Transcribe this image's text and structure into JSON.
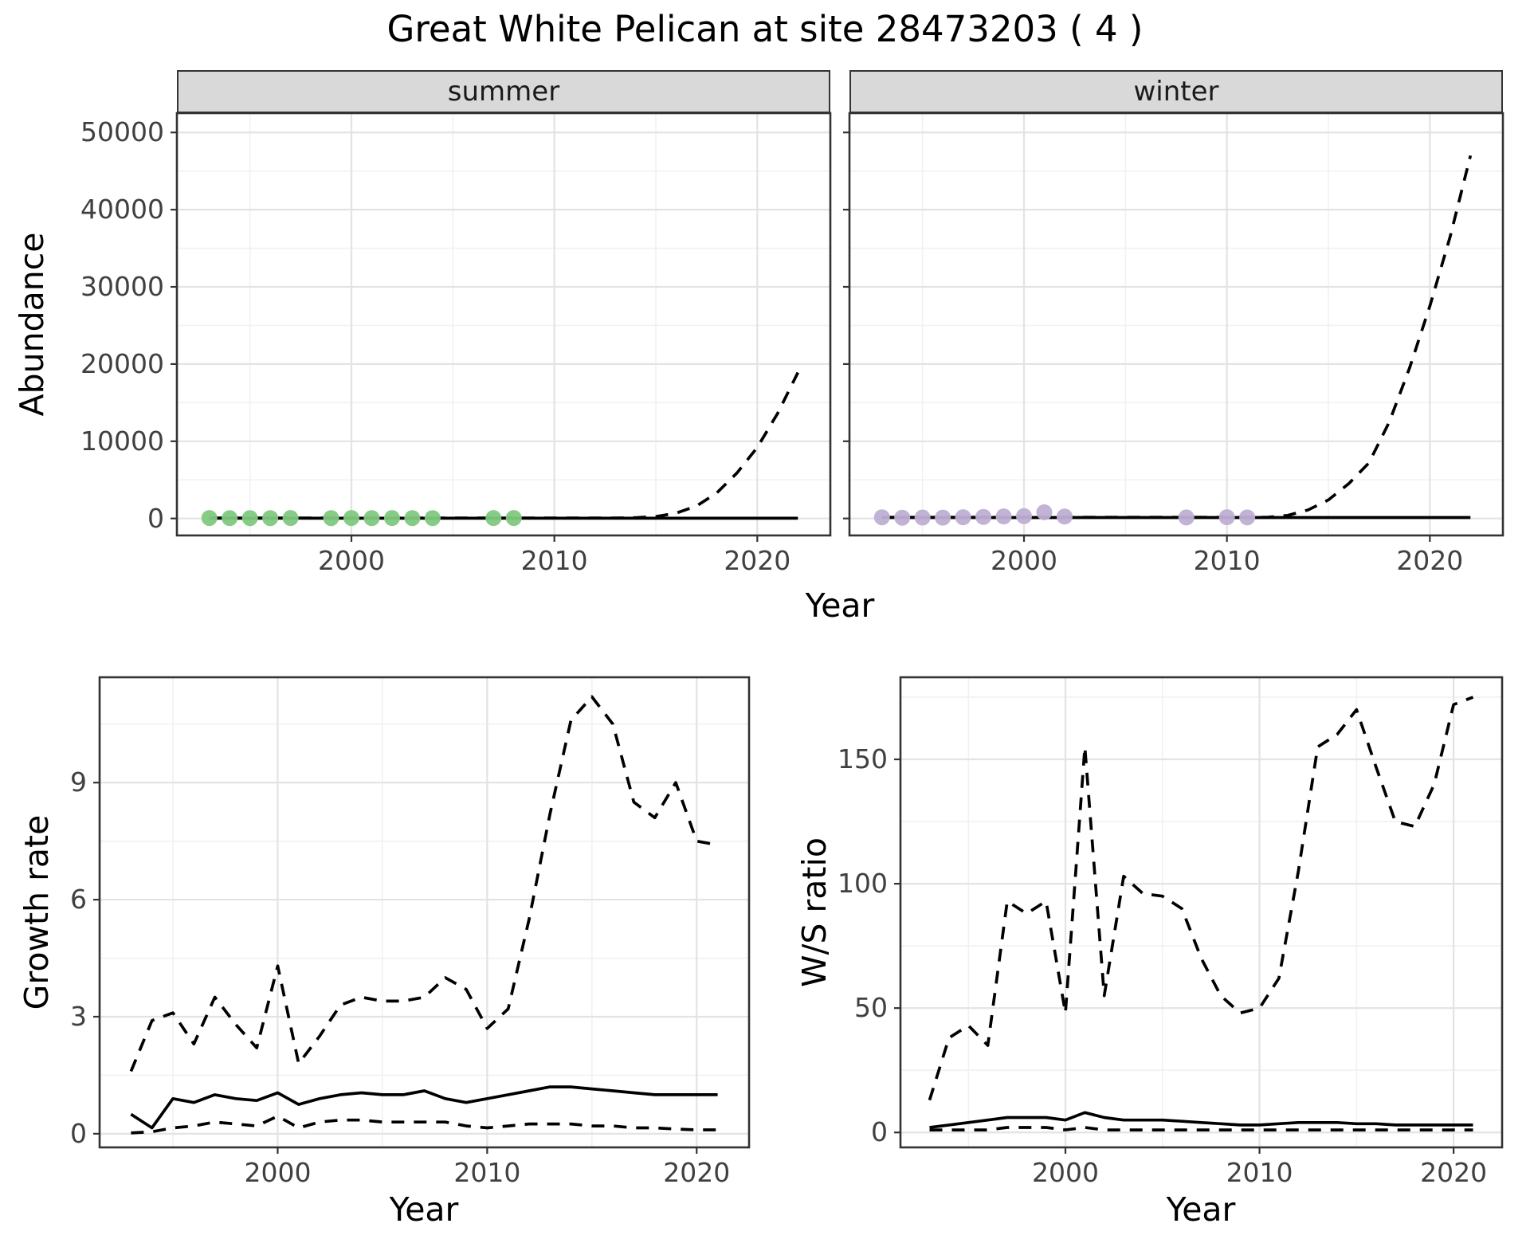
{
  "title": "Great White Pelican at site 28473203 ( 4 )",
  "colors": {
    "summer_point": "#7fc97f",
    "winter_point": "#beaed4",
    "line": "#000000",
    "grid_major": "#e3e3e3",
    "grid_minor": "#f1f1f1",
    "panel_border": "#333333",
    "tick_mark": "#333333",
    "strip_bg": "#d9d9d9",
    "tick_label": "#404040"
  },
  "chart_data": [
    {
      "id": "abundance_summer",
      "type": "line",
      "facet_label": "summer",
      "xlabel": "Year",
      "ylabel": "Abundance",
      "xlim": [
        1991.4,
        2023.6
      ],
      "ylim": [
        -2200,
        52500
      ],
      "xticks": [
        2000,
        2010,
        2020
      ],
      "xminor": [
        1995,
        2005,
        2015
      ],
      "yticks": [
        0,
        10000,
        20000,
        30000,
        40000,
        50000
      ],
      "yminor": [
        5000,
        15000,
        25000,
        35000,
        45000
      ],
      "series": [
        {
          "name": "upper-projection",
          "style": "dashed",
          "color": "#000000",
          "x": [
            1993,
            1994,
            1995,
            1996,
            1997,
            1998,
            1999,
            2000,
            2001,
            2002,
            2003,
            2004,
            2005,
            2006,
            2007,
            2008,
            2009,
            2010,
            2011,
            2012,
            2013,
            2014,
            2015,
            2016,
            2017,
            2018,
            2019,
            2020,
            2021,
            2022
          ],
          "y": [
            60,
            60,
            60,
            60,
            60,
            60,
            60,
            60,
            60,
            60,
            60,
            60,
            60,
            60,
            60,
            60,
            60,
            60,
            60,
            60,
            60,
            100,
            250,
            700,
            1600,
            3300,
            5900,
            9200,
            13600,
            18900
          ]
        },
        {
          "name": "median",
          "style": "solid",
          "color": "#000000",
          "x": [
            1993,
            1994,
            1995,
            1996,
            1997,
            1998,
            1999,
            2000,
            2001,
            2002,
            2003,
            2004,
            2005,
            2006,
            2007,
            2008,
            2009,
            2010,
            2011,
            2012,
            2013,
            2014,
            2015,
            2016,
            2017,
            2018,
            2019,
            2020,
            2021,
            2022
          ],
          "y": [
            25,
            25,
            25,
            25,
            25,
            25,
            25,
            25,
            25,
            25,
            25,
            25,
            25,
            25,
            25,
            25,
            25,
            25,
            25,
            25,
            25,
            25,
            25,
            25,
            25,
            25,
            25,
            25,
            25,
            25
          ]
        },
        {
          "name": "summer-observations",
          "style": "points",
          "color": "#7fc97f",
          "x": [
            1993,
            1994,
            1995,
            1996,
            1997,
            1999,
            2000,
            2001,
            2002,
            2003,
            2004,
            2007,
            2008
          ],
          "y": [
            60,
            40,
            50,
            45,
            55,
            50,
            60,
            45,
            55,
            50,
            48,
            52,
            60
          ]
        }
      ]
    },
    {
      "id": "abundance_winter",
      "type": "line",
      "facet_label": "winter",
      "xlabel": "Year",
      "ylabel": "Abundance",
      "xlim": [
        1991.4,
        2023.6
      ],
      "ylim": [
        -2200,
        52500
      ],
      "xticks": [
        2000,
        2010,
        2020
      ],
      "xminor": [
        1995,
        2005,
        2015
      ],
      "yticks": [
        0,
        10000,
        20000,
        30000,
        40000,
        50000
      ],
      "yminor": [
        5000,
        15000,
        25000,
        35000,
        45000
      ],
      "series": [
        {
          "name": "upper-projection",
          "style": "dashed",
          "color": "#000000",
          "x": [
            1993,
            1994,
            1995,
            1996,
            1997,
            1998,
            1999,
            2000,
            2001,
            2002,
            2003,
            2004,
            2005,
            2006,
            2007,
            2008,
            2009,
            2010,
            2011,
            2012,
            2013,
            2014,
            2015,
            2016,
            2017,
            2018,
            2019,
            2020,
            2021,
            2022
          ],
          "y": [
            150,
            150,
            150,
            150,
            150,
            150,
            150,
            150,
            150,
            150,
            150,
            150,
            150,
            150,
            150,
            150,
            150,
            150,
            150,
            150,
            400,
            1100,
            2400,
            4500,
            7200,
            12500,
            19500,
            27500,
            36500,
            47000
          ]
        },
        {
          "name": "median",
          "style": "solid",
          "color": "#000000",
          "x": [
            1993,
            1994,
            1995,
            1996,
            1997,
            1998,
            1999,
            2000,
            2001,
            2002,
            2003,
            2004,
            2005,
            2006,
            2007,
            2008,
            2009,
            2010,
            2011,
            2012,
            2013,
            2014,
            2015,
            2016,
            2017,
            2018,
            2019,
            2020,
            2021,
            2022
          ],
          "y": [
            120,
            120,
            120,
            120,
            120,
            120,
            120,
            120,
            120,
            120,
            120,
            120,
            120,
            120,
            120,
            120,
            120,
            120,
            120,
            120,
            120,
            120,
            120,
            120,
            120,
            120,
            120,
            120,
            120,
            120
          ]
        },
        {
          "name": "winter-observations",
          "style": "points",
          "color": "#beaed4",
          "x": [
            1993,
            1994,
            1995,
            1996,
            1997,
            1998,
            1999,
            2000,
            2001,
            2002,
            2008,
            2010,
            2011
          ],
          "y": [
            150,
            100,
            120,
            110,
            160,
            200,
            260,
            300,
            800,
            250,
            130,
            160,
            140
          ]
        }
      ]
    },
    {
      "id": "growth_rate",
      "type": "line",
      "facet_label": "",
      "xlabel": "Year",
      "ylabel": "Growth rate",
      "xlim": [
        1991.5,
        2022.5
      ],
      "ylim": [
        -0.35,
        11.7
      ],
      "xticks": [
        2000,
        2010,
        2020
      ],
      "xminor": [
        1995,
        2005,
        2015
      ],
      "yticks": [
        0,
        3,
        6,
        9
      ],
      "yminor": [
        1.5,
        4.5,
        7.5,
        10.5
      ],
      "series": [
        {
          "name": "upper-ci",
          "style": "dashed",
          "color": "#000000",
          "x": [
            1993,
            1994,
            1995,
            1996,
            1997,
            1998,
            1999,
            2000,
            2001,
            2002,
            2003,
            2004,
            2005,
            2006,
            2007,
            2008,
            2009,
            2010,
            2011,
            2012,
            2013,
            2014,
            2015,
            2016,
            2017,
            2018,
            2019,
            2020,
            2021
          ],
          "y": [
            1.6,
            2.9,
            3.1,
            2.3,
            3.5,
            2.8,
            2.2,
            4.3,
            1.8,
            2.5,
            3.3,
            3.5,
            3.4,
            3.4,
            3.5,
            4.0,
            3.7,
            2.7,
            3.2,
            5.5,
            8.2,
            10.6,
            11.2,
            10.5,
            8.5,
            8.1,
            9.0,
            7.5,
            7.4
          ]
        },
        {
          "name": "lower-ci",
          "style": "dashed",
          "color": "#000000",
          "x": [
            1993,
            1994,
            1995,
            1996,
            1997,
            1998,
            1999,
            2000,
            2001,
            2002,
            2003,
            2004,
            2005,
            2006,
            2007,
            2008,
            2009,
            2010,
            2011,
            2012,
            2013,
            2014,
            2015,
            2016,
            2017,
            2018,
            2019,
            2020,
            2021
          ],
          "y": [
            0.02,
            0.05,
            0.15,
            0.2,
            0.3,
            0.25,
            0.2,
            0.45,
            0.15,
            0.3,
            0.35,
            0.35,
            0.3,
            0.3,
            0.3,
            0.3,
            0.2,
            0.15,
            0.2,
            0.25,
            0.25,
            0.25,
            0.2,
            0.2,
            0.15,
            0.15,
            0.12,
            0.1,
            0.1
          ]
        },
        {
          "name": "median",
          "style": "solid",
          "color": "#000000",
          "x": [
            1993,
            1994,
            1995,
            1996,
            1997,
            1998,
            1999,
            2000,
            2001,
            2002,
            2003,
            2004,
            2005,
            2006,
            2007,
            2008,
            2009,
            2010,
            2011,
            2012,
            2013,
            2014,
            2015,
            2016,
            2017,
            2018,
            2019,
            2020,
            2021
          ],
          "y": [
            0.5,
            0.15,
            0.9,
            0.8,
            1.0,
            0.9,
            0.85,
            1.05,
            0.75,
            0.9,
            1.0,
            1.05,
            1.0,
            1.0,
            1.1,
            0.9,
            0.8,
            0.9,
            1.0,
            1.1,
            1.2,
            1.2,
            1.15,
            1.1,
            1.05,
            1.0,
            1.0,
            1.0,
            1.0
          ]
        }
      ]
    },
    {
      "id": "ws_ratio",
      "type": "line",
      "facet_label": "",
      "xlabel": "Year",
      "ylabel": "W/S ratio",
      "xlim": [
        1991.5,
        2022.5
      ],
      "ylim": [
        -6,
        183
      ],
      "xticks": [
        2000,
        2010,
        2020
      ],
      "xminor": [
        1995,
        2005,
        2015
      ],
      "yticks": [
        0,
        50,
        100,
        150
      ],
      "yminor": [
        25,
        75,
        125,
        175
      ],
      "series": [
        {
          "name": "upper-ci",
          "style": "dashed",
          "color": "#000000",
          "x": [
            1993,
            1994,
            1995,
            1996,
            1997,
            1998,
            1999,
            2000,
            2001,
            2002,
            2003,
            2004,
            2005,
            2006,
            2007,
            2008,
            2009,
            2010,
            2011,
            2012,
            2013,
            2014,
            2015,
            2016,
            2017,
            2018,
            2019,
            2020,
            2021
          ],
          "y": [
            13,
            38,
            43,
            35,
            93,
            88,
            93,
            48,
            155,
            55,
            103,
            96,
            95,
            90,
            70,
            55,
            48,
            50,
            62,
            105,
            155,
            160,
            170,
            147,
            125,
            123,
            140,
            172,
            175
          ]
        },
        {
          "name": "lower-ci",
          "style": "dashed",
          "color": "#000000",
          "x": [
            1993,
            1994,
            1995,
            1996,
            1997,
            1998,
            1999,
            2000,
            2001,
            2002,
            2003,
            2004,
            2005,
            2006,
            2007,
            2008,
            2009,
            2010,
            2011,
            2012,
            2013,
            2014,
            2015,
            2016,
            2017,
            2018,
            2019,
            2020,
            2021
          ],
          "y": [
            1,
            1,
            1,
            1,
            2,
            2,
            2,
            1,
            2,
            1,
            1,
            1,
            1,
            1,
            1,
            1,
            1,
            1,
            1,
            1,
            1,
            1,
            1,
            1,
            1,
            1,
            1,
            1,
            1
          ]
        },
        {
          "name": "median",
          "style": "solid",
          "color": "#000000",
          "x": [
            1993,
            1994,
            1995,
            1996,
            1997,
            1998,
            1999,
            2000,
            2001,
            2002,
            2003,
            2004,
            2005,
            2006,
            2007,
            2008,
            2009,
            2010,
            2011,
            2012,
            2013,
            2014,
            2015,
            2016,
            2017,
            2018,
            2019,
            2020,
            2021
          ],
          "y": [
            2,
            3,
            4,
            5,
            6,
            6,
            6,
            5,
            8,
            6,
            5,
            5,
            5,
            4.5,
            4,
            3.5,
            3,
            3,
            3.5,
            4,
            4,
            4,
            3.5,
            3.5,
            3,
            3,
            3,
            3,
            3
          ]
        }
      ]
    }
  ]
}
